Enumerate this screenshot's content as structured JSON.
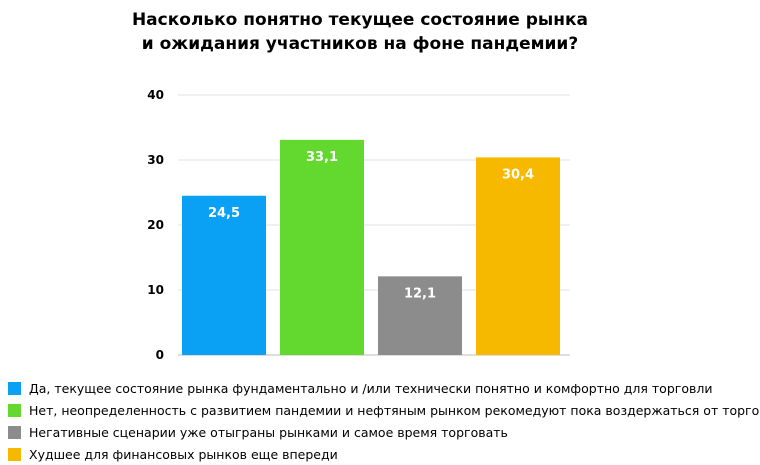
{
  "chart_data": {
    "type": "bar",
    "title": "Насколько понятно текущее состояние рынка и ожидания участников на фоне пандемии?",
    "categories": [
      "Да, текущее состояние рынка фундаментально и /или технически понятно и комфортно для торговли",
      "Нет, неопределенность с развитием пандемии и нефтяным рынком рекомедуют пока воздержаться от торговли",
      "Негативные сценарии уже отыграны рынками и самое время торговать",
      "Худшее для финансовых рынков еще впереди"
    ],
    "values": [
      24.5,
      33.1,
      12.1,
      30.4
    ],
    "value_labels": [
      "24,5",
      "33,1",
      "12,1",
      "30,4"
    ],
    "colors": [
      "#0aa1f5",
      "#63d92f",
      "#8c8c8c",
      "#f7b800"
    ],
    "ylim": [
      0,
      40
    ],
    "yticks": [
      0,
      10,
      20,
      30,
      40
    ],
    "xlabel": "",
    "ylabel": "",
    "grid": true,
    "legend_position": "bottom"
  }
}
